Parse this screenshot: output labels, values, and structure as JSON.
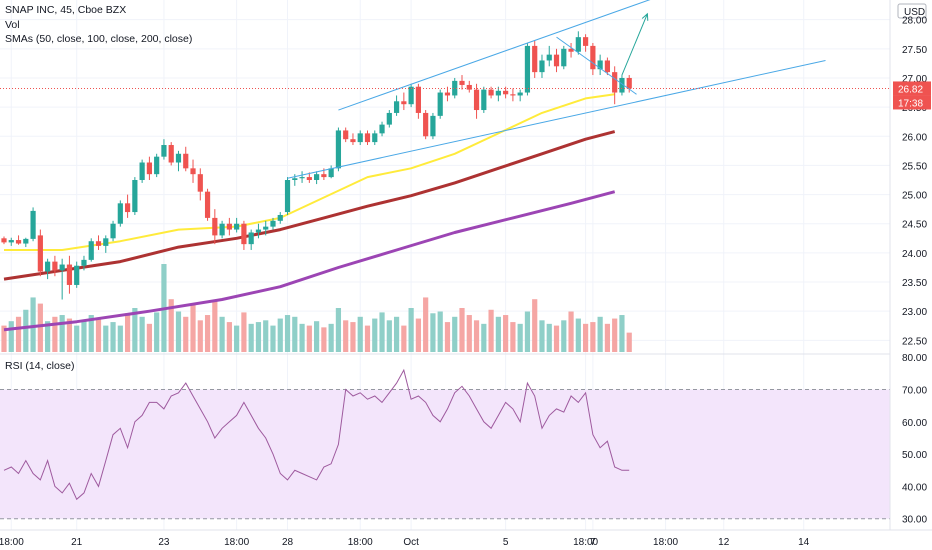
{
  "header": {
    "symbol_line": "SNAP INC, 45, Cboe BZX",
    "vol_label": "Vol",
    "sma_label": "SMAs (50, close, 100, close, 200, close)",
    "rsi_label": "RSI (14, close)",
    "currency": "USD"
  },
  "colors": {
    "up": "#26a69a",
    "down": "#ef5350",
    "vol_up": "#8fcfc8",
    "vol_down": "#f5a6a4",
    "sma50": "#ffeb3b",
    "sma100": "#ad3232",
    "sma200": "#9c45b4",
    "rsi_line": "#9e5a9e",
    "rsi_band": "#f3e5fb",
    "trendline": "#4aa8e6",
    "price_tag": "#ef5350"
  },
  "chart_data": [
    {
      "type": "candlestick",
      "name": "price",
      "y_ticks": [
        "28.00",
        "27.50",
        "27.00",
        "26.50",
        "26.00",
        "25.50",
        "25.00",
        "24.50",
        "24.00",
        "23.50",
        "23.00",
        "22.50"
      ],
      "ylim": [
        22.3,
        28.2
      ],
      "last_price": "26.82",
      "countdown": "17:38",
      "x_ticks": [
        {
          "i": 1,
          "label": "18:00"
        },
        {
          "i": 10,
          "label": "21"
        },
        {
          "i": 22,
          "label": "23"
        },
        {
          "i": 32,
          "label": "18:00"
        },
        {
          "i": 39,
          "label": "28"
        },
        {
          "i": 49,
          "label": "18:00"
        },
        {
          "i": 56,
          "label": "Oct"
        },
        {
          "i": 69,
          "label": "5"
        },
        {
          "i": 80,
          "label": "18:00"
        },
        {
          "i": 81,
          "label": "7"
        },
        {
          "i": 91,
          "label": "18:00"
        },
        {
          "i": 99,
          "label": "12"
        },
        {
          "i": 110,
          "label": "14"
        }
      ],
      "candles": [
        [
          24.25,
          24.28,
          24.15,
          24.18
        ],
        [
          24.18,
          24.26,
          24.12,
          24.22
        ],
        [
          24.22,
          24.3,
          24.14,
          24.16
        ],
        [
          24.16,
          24.26,
          24.1,
          24.24
        ],
        [
          24.24,
          24.78,
          24.2,
          24.72
        ],
        [
          24.3,
          24.4,
          23.6,
          23.68
        ],
        [
          23.68,
          23.9,
          23.55,
          23.85
        ],
        [
          23.85,
          23.95,
          23.6,
          23.7
        ],
        [
          23.7,
          23.9,
          23.2,
          23.8
        ],
        [
          23.8,
          23.95,
          23.3,
          23.45
        ],
        [
          23.45,
          23.85,
          23.4,
          23.78
        ],
        [
          23.78,
          23.95,
          23.7,
          23.88
        ],
        [
          23.88,
          24.25,
          23.85,
          24.2
        ],
        [
          24.2,
          24.3,
          24.05,
          24.12
        ],
        [
          24.12,
          24.3,
          24.0,
          24.25
        ],
        [
          24.25,
          24.55,
          24.2,
          24.5
        ],
        [
          24.5,
          24.9,
          24.45,
          24.85
        ],
        [
          24.85,
          25.0,
          24.6,
          24.7
        ],
        [
          24.7,
          25.3,
          24.65,
          25.25
        ],
        [
          25.25,
          25.6,
          25.2,
          25.55
        ],
        [
          25.55,
          25.65,
          25.25,
          25.35
        ],
        [
          25.35,
          25.7,
          25.3,
          25.65
        ],
        [
          25.65,
          25.95,
          25.6,
          25.85
        ],
        [
          25.85,
          25.9,
          25.5,
          25.55
        ],
        [
          25.55,
          25.75,
          25.4,
          25.7
        ],
        [
          25.7,
          25.82,
          25.4,
          25.45
        ],
        [
          25.45,
          25.6,
          25.2,
          25.35
        ],
        [
          25.35,
          25.45,
          24.9,
          25.05
        ],
        [
          25.05,
          25.1,
          24.55,
          24.6
        ],
        [
          24.6,
          24.75,
          24.15,
          24.3
        ],
        [
          24.3,
          24.55,
          24.25,
          24.5
        ],
        [
          24.5,
          24.6,
          24.3,
          24.4
        ],
        [
          24.4,
          24.6,
          24.35,
          24.5
        ],
        [
          24.5,
          24.55,
          24.05,
          24.15
        ],
        [
          24.15,
          24.4,
          24.05,
          24.35
        ],
        [
          24.35,
          24.5,
          24.25,
          24.4
        ],
        [
          24.4,
          24.55,
          24.3,
          24.45
        ],
        [
          24.45,
          24.6,
          24.4,
          24.55
        ],
        [
          24.55,
          24.7,
          24.5,
          24.65
        ],
        [
          24.7,
          25.3,
          24.65,
          25.25
        ],
        [
          25.25,
          25.35,
          25.15,
          25.28
        ],
        [
          25.28,
          25.4,
          25.2,
          25.3
        ],
        [
          25.3,
          25.38,
          25.2,
          25.25
        ],
        [
          25.25,
          25.4,
          25.18,
          25.35
        ],
        [
          25.35,
          25.45,
          25.25,
          25.3
        ],
        [
          25.3,
          25.5,
          25.28,
          25.45
        ],
        [
          25.45,
          26.15,
          25.4,
          26.1
        ],
        [
          26.1,
          26.15,
          25.9,
          25.95
        ],
        [
          25.95,
          26.05,
          25.85,
          25.9
        ],
        [
          25.9,
          26.1,
          25.85,
          26.05
        ],
        [
          26.05,
          26.1,
          25.85,
          25.9
        ],
        [
          25.9,
          26.1,
          25.85,
          26.05
        ],
        [
          26.05,
          26.25,
          26.0,
          26.2
        ],
        [
          26.2,
          26.45,
          26.15,
          26.4
        ],
        [
          26.4,
          26.7,
          26.35,
          26.6
        ],
        [
          26.6,
          26.75,
          26.45,
          26.55
        ],
        [
          26.55,
          26.9,
          26.5,
          26.85
        ],
        [
          26.85,
          26.9,
          26.3,
          26.4
        ],
        [
          26.4,
          26.45,
          25.95,
          26.0
        ],
        [
          26.0,
          26.4,
          25.95,
          26.35
        ],
        [
          26.35,
          26.8,
          26.3,
          26.75
        ],
        [
          26.75,
          26.85,
          26.6,
          26.7
        ],
        [
          26.7,
          27.0,
          26.65,
          26.95
        ],
        [
          26.95,
          27.05,
          26.8,
          26.88
        ],
        [
          26.88,
          26.95,
          26.75,
          26.8
        ],
        [
          26.8,
          26.9,
          26.3,
          26.45
        ],
        [
          26.45,
          26.85,
          26.4,
          26.8
        ],
        [
          26.8,
          26.85,
          26.65,
          26.7
        ],
        [
          26.7,
          26.85,
          26.6,
          26.78
        ],
        [
          26.78,
          26.85,
          26.65,
          26.72
        ],
        [
          26.72,
          26.82,
          26.6,
          26.7
        ],
        [
          26.7,
          26.8,
          26.6,
          26.75
        ],
        [
          26.75,
          27.6,
          26.7,
          27.55
        ],
        [
          27.55,
          27.65,
          27.0,
          27.1
        ],
        [
          27.1,
          27.4,
          27.0,
          27.3
        ],
        [
          27.3,
          27.55,
          27.2,
          27.4
        ],
        [
          27.4,
          27.5,
          27.1,
          27.2
        ],
        [
          27.2,
          27.55,
          27.15,
          27.5
        ],
        [
          27.5,
          27.6,
          27.35,
          27.45
        ],
        [
          27.45,
          27.8,
          27.4,
          27.7
        ],
        [
          27.7,
          27.75,
          27.45,
          27.55
        ],
        [
          27.55,
          27.6,
          27.05,
          27.15
        ],
        [
          27.15,
          27.4,
          27.05,
          27.3
        ],
        [
          27.3,
          27.35,
          27.05,
          27.1
        ],
        [
          27.1,
          27.2,
          26.55,
          26.75
        ],
        [
          26.75,
          27.05,
          26.7,
          27.0
        ],
        [
          27.0,
          27.05,
          26.75,
          26.82
        ]
      ],
      "sma50": [
        [
          0,
          24.05
        ],
        [
          8,
          24.05
        ],
        [
          16,
          24.2
        ],
        [
          24,
          24.4
        ],
        [
          32,
          24.45
        ],
        [
          38,
          24.6
        ],
        [
          44,
          24.95
        ],
        [
          50,
          25.3
        ],
        [
          56,
          25.45
        ],
        [
          62,
          25.7
        ],
        [
          68,
          26.05
        ],
        [
          74,
          26.4
        ],
        [
          80,
          26.65
        ],
        [
          84,
          26.72
        ]
      ],
      "sma100": [
        [
          0,
          23.55
        ],
        [
          8,
          23.7
        ],
        [
          16,
          23.85
        ],
        [
          24,
          24.1
        ],
        [
          32,
          24.25
        ],
        [
          38,
          24.4
        ],
        [
          44,
          24.6
        ],
        [
          50,
          24.8
        ],
        [
          56,
          24.98
        ],
        [
          62,
          25.2
        ],
        [
          68,
          25.45
        ],
        [
          74,
          25.7
        ],
        [
          80,
          25.95
        ],
        [
          84,
          26.08
        ]
      ],
      "sma200": [
        [
          0,
          22.68
        ],
        [
          10,
          22.82
        ],
        [
          20,
          23.0
        ],
        [
          30,
          23.2
        ],
        [
          38,
          23.42
        ],
        [
          46,
          23.75
        ],
        [
          54,
          24.05
        ],
        [
          62,
          24.35
        ],
        [
          70,
          24.6
        ],
        [
          78,
          24.85
        ],
        [
          84,
          25.05
        ]
      ],
      "trendlines": [
        [
          [
            46,
            26.45
          ],
          [
            89,
            28.35
          ]
        ],
        [
          [
            39,
            25.28
          ],
          [
            113,
            27.3
          ]
        ],
        [
          [
            76,
            27.7
          ],
          [
            87,
            26.72
          ]
        ]
      ],
      "arrow": [
        [
          85,
          27.05
        ],
        [
          88.5,
          28.1
        ]
      ],
      "volume": [
        30,
        35,
        40,
        48,
        62,
        55,
        35,
        40,
        42,
        38,
        30,
        36,
        42,
        38,
        30,
        34,
        30,
        44,
        50,
        40,
        32,
        45,
        100,
        60,
        46,
        40,
        55,
        36,
        42,
        58,
        40,
        34,
        30,
        45,
        32,
        34,
        36,
        30,
        38,
        42,
        40,
        32,
        30,
        35,
        28,
        32,
        50,
        36,
        34,
        40,
        30,
        38,
        45,
        36,
        40,
        30,
        50,
        38,
        62,
        44,
        46,
        34,
        40,
        50,
        42,
        36,
        32,
        48,
        40,
        42,
        34,
        32,
        46,
        60,
        36,
        32,
        30,
        36,
        46,
        38,
        32,
        34,
        40,
        32,
        38,
        42,
        22
      ]
    },
    {
      "type": "line",
      "name": "RSI",
      "y_ticks": [
        "80.00",
        "70.00",
        "60.00",
        "50.00",
        "40.00",
        "30.00"
      ],
      "ylim": [
        26.5,
        81
      ],
      "bands": [
        30,
        70
      ],
      "values": [
        45,
        46,
        44,
        48,
        44,
        42,
        48,
        40,
        38,
        41,
        36,
        38,
        44,
        40,
        48,
        56,
        58,
        52,
        60,
        62,
        66,
        66,
        64,
        68,
        69,
        72,
        68,
        64,
        60,
        55,
        58,
        60,
        62,
        66,
        62,
        58,
        55,
        50,
        44,
        42,
        45,
        44,
        43,
        42,
        46,
        47,
        53,
        70,
        68,
        69,
        67,
        68,
        66,
        69,
        72,
        76,
        67,
        68,
        66,
        62,
        60,
        64,
        69,
        71,
        68,
        64,
        60,
        58,
        62,
        66,
        64,
        60,
        72,
        68,
        58,
        62,
        64,
        63,
        68,
        66,
        69,
        56,
        52,
        54,
        46,
        45,
        45
      ]
    }
  ]
}
